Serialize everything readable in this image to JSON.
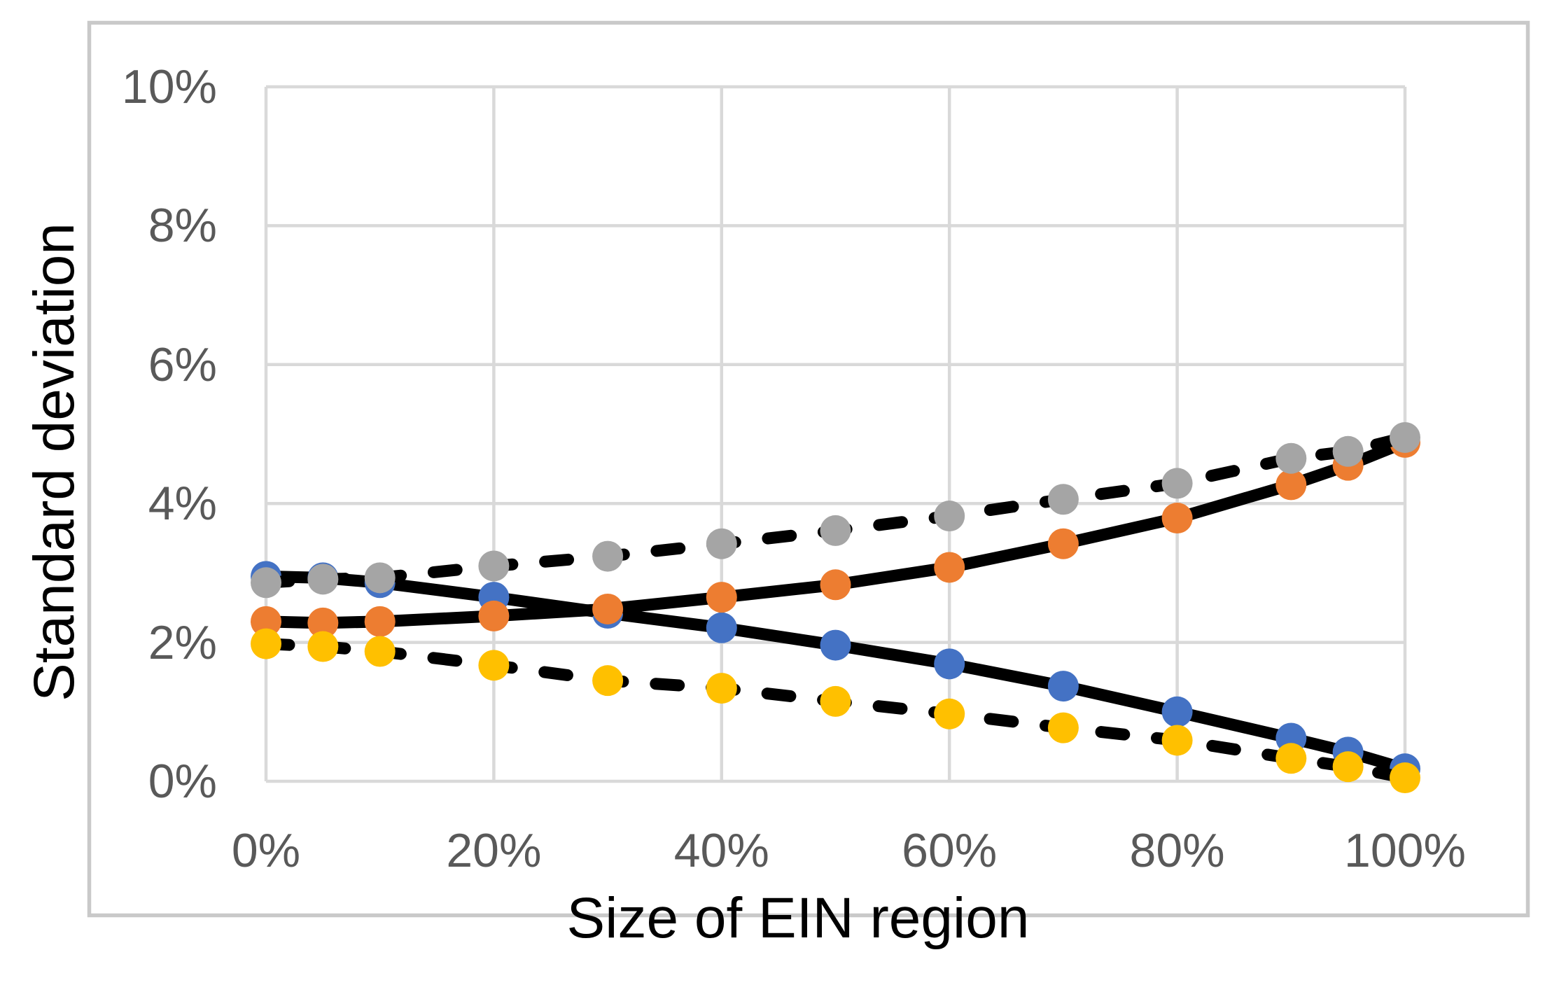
{
  "chart_data": {
    "type": "line",
    "title": "",
    "xlabel": "Size of EIN region",
    "ylabel": "Standard deviation",
    "xlim": [
      0,
      100
    ],
    "ylim": [
      0,
      10
    ],
    "x_ticks": [
      "0%",
      "20%",
      "40%",
      "60%",
      "80%",
      "100%"
    ],
    "x_tick_values": [
      0,
      20,
      40,
      60,
      80,
      100
    ],
    "y_ticks": [
      "0%",
      "2%",
      "4%",
      "6%",
      "8%",
      "10%"
    ],
    "y_tick_values": [
      0,
      2,
      4,
      6,
      8,
      10
    ],
    "grid": true,
    "legend": "none",
    "x": [
      0,
      5,
      10,
      20,
      30,
      40,
      50,
      60,
      70,
      80,
      90,
      95,
      100
    ],
    "series": [
      {
        "name": "blue-solid",
        "marker_color": "#4472C4",
        "line_style": "solid",
        "values": [
          2.95,
          2.93,
          2.86,
          2.65,
          2.42,
          2.21,
          1.96,
          1.69,
          1.37,
          1.0,
          0.62,
          0.42,
          0.18
        ]
      },
      {
        "name": "orange-solid",
        "marker_color": "#ED7D31",
        "line_style": "solid",
        "values": [
          2.3,
          2.28,
          2.3,
          2.38,
          2.48,
          2.65,
          2.83,
          3.08,
          3.42,
          3.79,
          4.27,
          4.55,
          4.88
        ]
      },
      {
        "name": "gray-dashed",
        "marker_color": "#A5A5A5",
        "line_style": "dashed",
        "values": [
          2.86,
          2.91,
          2.93,
          3.1,
          3.24,
          3.42,
          3.61,
          3.82,
          4.06,
          4.29,
          4.65,
          4.75,
          4.95
        ]
      },
      {
        "name": "yellow-dashed",
        "marker_color": "#FFC000",
        "line_style": "dashed",
        "values": [
          1.98,
          1.94,
          1.87,
          1.67,
          1.45,
          1.34,
          1.15,
          0.97,
          0.77,
          0.59,
          0.33,
          0.21,
          0.05
        ]
      }
    ],
    "line_color": "#000000"
  },
  "colors": {
    "gridline": "#D9D9D9",
    "chart_border": "#C9C9C9",
    "tick_label": "#595959",
    "axis_title": "#000000"
  }
}
